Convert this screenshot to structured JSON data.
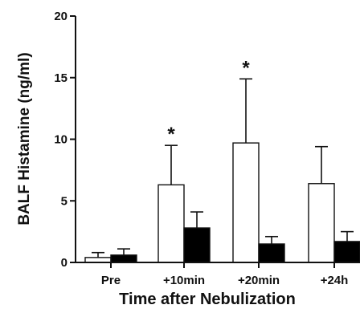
{
  "chart_data": {
    "type": "bar",
    "xlabel": "Time after Nebulization",
    "ylabel": "BALF Histamine (ng/ml)",
    "ylim": [
      0,
      20
    ],
    "yticks": [
      0,
      5,
      10,
      15,
      20
    ],
    "categories": [
      "Pre",
      "+10min",
      "+20min",
      "+24h"
    ],
    "series": [
      {
        "fill": "#ffffff",
        "values": [
          0.4,
          6.3,
          9.7,
          6.4
        ],
        "errors": [
          0.4,
          3.2,
          5.2,
          3.0
        ],
        "annotations": [
          "",
          "*",
          "*",
          ""
        ]
      },
      {
        "fill": "#000000",
        "values": [
          0.6,
          2.8,
          1.5,
          1.7
        ],
        "errors": [
          0.5,
          1.3,
          0.6,
          0.8
        ],
        "annotations": [
          "",
          "",
          "",
          ""
        ]
      }
    ],
    "grid": false,
    "legend": "none"
  }
}
